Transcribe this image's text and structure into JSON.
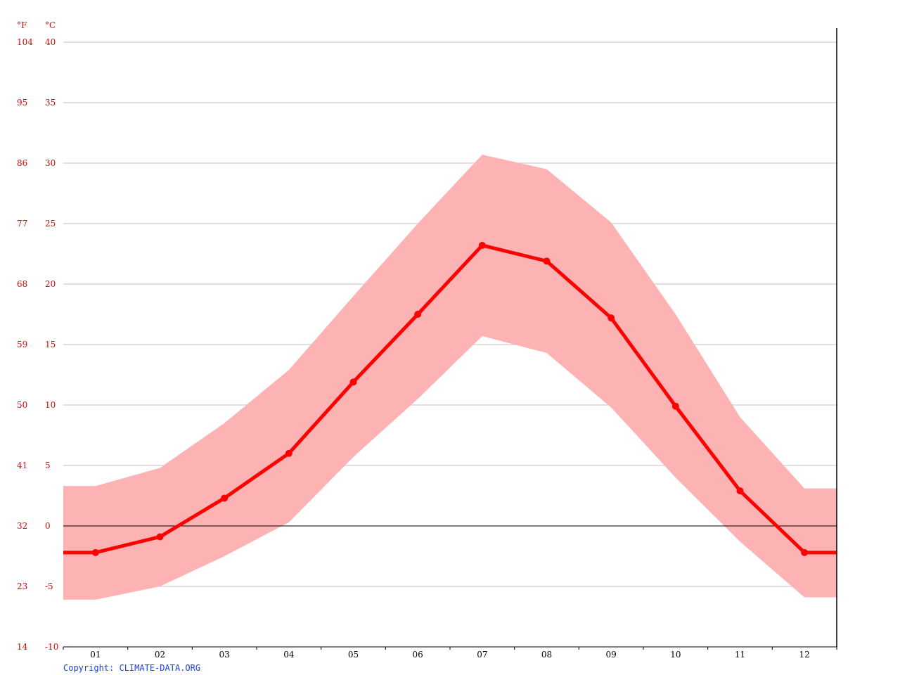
{
  "chart_data": {
    "type": "line",
    "unit_labels": {
      "fahrenheit": "°F",
      "celsius": "°C"
    },
    "y_ticks_c": [
      40,
      35,
      30,
      25,
      20,
      15,
      10,
      5,
      0,
      -5,
      -10
    ],
    "y_ticks_f": [
      104,
      95,
      86,
      77,
      68,
      59,
      50,
      41,
      32,
      23,
      14
    ],
    "ylim": [
      -10,
      40
    ],
    "grid": true,
    "categories": [
      "01",
      "02",
      "03",
      "04",
      "05",
      "06",
      "07",
      "08",
      "09",
      "10",
      "11",
      "12"
    ],
    "series": [
      {
        "values": [
          -2.2,
          -0.9,
          2.3,
          6.0,
          11.9,
          17.5,
          23.2,
          21.9,
          17.2,
          9.9,
          2.9,
          -2.2
        ]
      },
      {
        "values": [
          3.3,
          4.8,
          8.5,
          12.9,
          19.0,
          25.0,
          30.7,
          29.5,
          25.1,
          17.5,
          9.0,
          3.1
        ]
      },
      {
        "values": [
          -6.1,
          -5.0,
          -2.5,
          0.3,
          5.7,
          10.5,
          15.7,
          14.3,
          9.8,
          4.0,
          -1.3,
          -5.9
        ]
      }
    ],
    "colors": {
      "line": "#ff0000",
      "band": "#fdb2b4",
      "grid": "#c0c0c0",
      "axis_text": "#e8000b"
    }
  },
  "copyright": "Copyright: CLIMATE-DATA.ORG"
}
